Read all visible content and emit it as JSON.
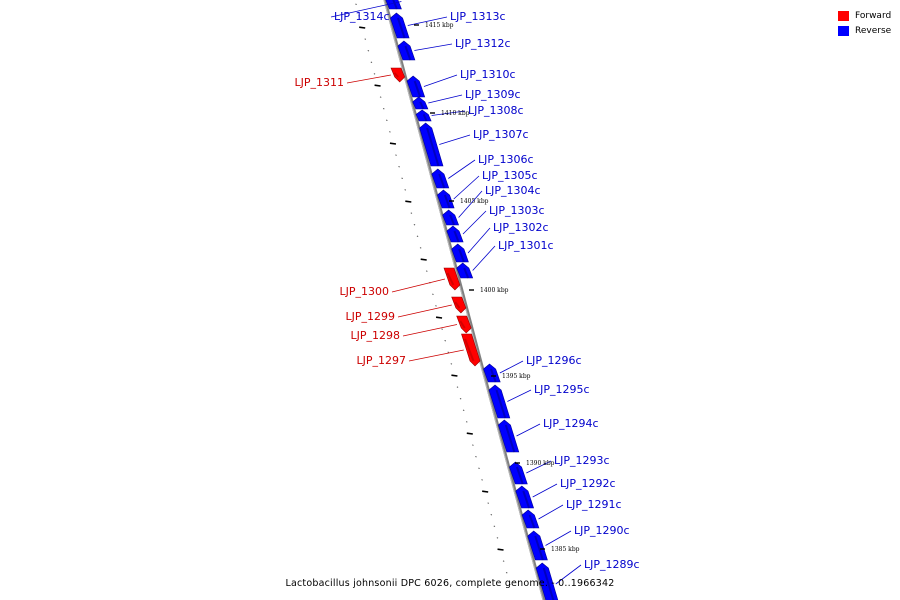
{
  "legend": {
    "forward_label": "Forward",
    "reverse_label": "Reverse",
    "forward_color": "#ff0000",
    "reverse_color": "#0000ff"
  },
  "caption": "Lactobacillus johnsonii DPC 6026, complete genome. - 0..1966342",
  "colors": {
    "backbone": "#808080",
    "forward": "#ff0000",
    "reverse": "#0000ff",
    "forward_label": "#cc0000",
    "reverse_label": "#0000cc"
  },
  "kbp_marks": [
    "1415 kbp",
    "1410 kbp",
    "1405 kbp",
    "1400 kbp",
    "1395 kbp",
    "1390 kbp",
    "1385 kbp"
  ],
  "genes": [
    {
      "name": "LJP_1314c",
      "strand": "reverse"
    },
    {
      "name": "LJP_1313c",
      "strand": "reverse"
    },
    {
      "name": "LJP_1312c",
      "strand": "reverse"
    },
    {
      "name": "LJP_1311",
      "strand": "forward"
    },
    {
      "name": "LJP_1310c",
      "strand": "reverse"
    },
    {
      "name": "LJP_1309c",
      "strand": "reverse"
    },
    {
      "name": "LJP_1308c",
      "strand": "reverse"
    },
    {
      "name": "LJP_1307c",
      "strand": "reverse"
    },
    {
      "name": "LJP_1306c",
      "strand": "reverse"
    },
    {
      "name": "LJP_1305c",
      "strand": "reverse"
    },
    {
      "name": "LJP_1304c",
      "strand": "reverse"
    },
    {
      "name": "LJP_1303c",
      "strand": "reverse"
    },
    {
      "name": "LJP_1302c",
      "strand": "reverse"
    },
    {
      "name": "LJP_1301c",
      "strand": "reverse"
    },
    {
      "name": "LJP_1300",
      "strand": "forward"
    },
    {
      "name": "LJP_1299",
      "strand": "forward"
    },
    {
      "name": "LJP_1298",
      "strand": "forward"
    },
    {
      "name": "LJP_1297",
      "strand": "forward"
    },
    {
      "name": "LJP_1296c",
      "strand": "reverse"
    },
    {
      "name": "LJP_1295c",
      "strand": "reverse"
    },
    {
      "name": "LJP_1294c",
      "strand": "reverse"
    },
    {
      "name": "LJP_1293c",
      "strand": "reverse"
    },
    {
      "name": "LJP_1292c",
      "strand": "reverse"
    },
    {
      "name": "LJP_1291c",
      "strand": "reverse"
    },
    {
      "name": "LJP_1290c",
      "strand": "reverse"
    },
    {
      "name": "LJP_1289c",
      "strand": "reverse"
    }
  ]
}
